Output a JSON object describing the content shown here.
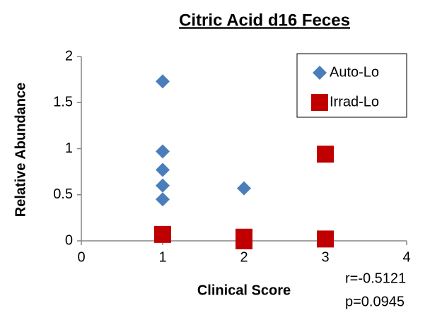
{
  "chart_data": {
    "type": "scatter",
    "title": "Citric Acid d16 Feces",
    "xlabel": "Clinical Score",
    "ylabel": "Relative Abundance",
    "series": [
      {
        "name": "Auto-Lo",
        "color": "#4a7ebb",
        "marker": "diamond",
        "x": [
          1,
          1,
          1,
          1,
          1,
          2
        ],
        "values": [
          1.73,
          0.97,
          0.77,
          0.6,
          0.45,
          0.57
        ]
      },
      {
        "name": "Irrad-Lo",
        "color": "#c00000",
        "marker": "square",
        "x": [
          1,
          2,
          2,
          3,
          3
        ],
        "values": [
          0.07,
          0.04,
          0.0,
          0.94,
          0.02
        ]
      }
    ],
    "xlim": [
      0,
      4
    ],
    "xticks": [
      0,
      1,
      2,
      3,
      4
    ],
    "ylim": [
      0,
      2
    ],
    "yticks": [
      0,
      0.5,
      1,
      1.5,
      2
    ],
    "grid": false,
    "legend": "top-right",
    "annotations": [
      "r=-0.5121",
      "p=0.0945"
    ]
  }
}
